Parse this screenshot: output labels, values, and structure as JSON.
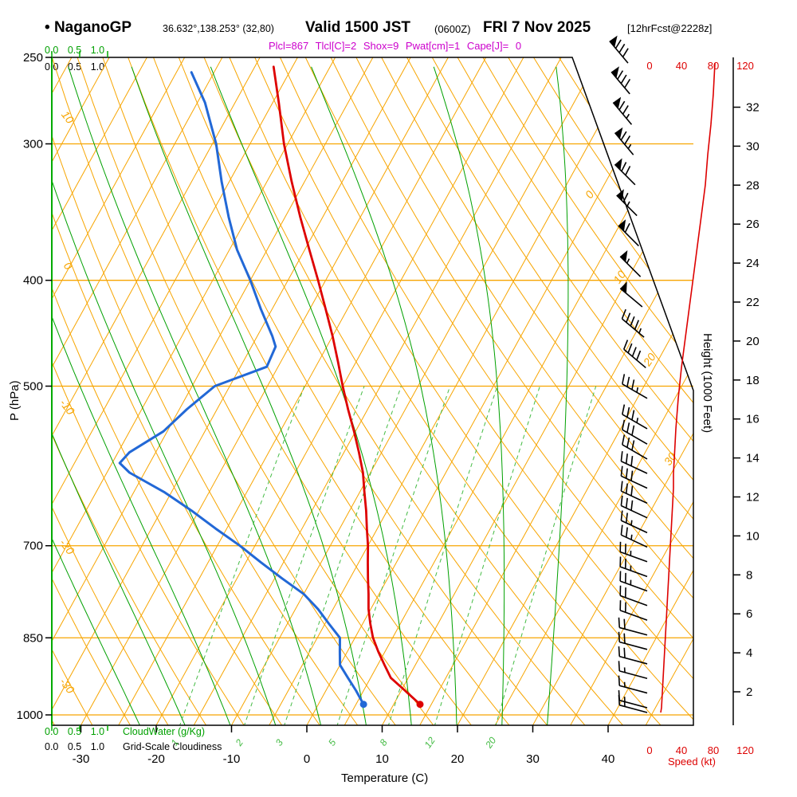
{
  "header": {
    "bullet": "•",
    "station": "NaganoGP",
    "coords": "36.632°,138.253° (32,80)",
    "valid": "Valid 1500 JST",
    "valid_z": "(0600Z)",
    "valid_date": "FRI 7 Nov 2025",
    "fcst_tag": "[12hrFcst@2228z]",
    "params_line": "Plcl=867 Tlcl[C]=2 Shox=9 Pwat[cm]=1 Cape[J]= 0"
  },
  "colors": {
    "grid_orange": "#f7a500",
    "moist_green": "#00a000",
    "mixing_green": "#44bb44",
    "axis_green": "#00aa00",
    "temp_red": "#dd0000",
    "dewpoint_blue": "#2268d6",
    "speed_red": "#dd0000",
    "magenta": "#cc00cc"
  },
  "chart_data": {
    "type": "skewt_logp_sounding",
    "pressure_axis": {
      "label": "P (hPa)",
      "scale": "log",
      "top_hpa": 250,
      "bottom_hpa": 1022,
      "ticks": [
        250,
        300,
        400,
        500,
        700,
        850,
        1000
      ]
    },
    "temperature_axis": {
      "label": "Temperature (C)",
      "ticks": [
        -30,
        -20,
        -10,
        0,
        10,
        20,
        30,
        40
      ]
    },
    "height_axis": {
      "label": "Height (1000 Feet)",
      "ticks": [
        2,
        4,
        6,
        8,
        10,
        12,
        14,
        16,
        18,
        20,
        22,
        24,
        26,
        28,
        30,
        32
      ]
    },
    "speed_axis": {
      "label": "Speed (kt)",
      "ticks": [
        0,
        40,
        80,
        120
      ]
    },
    "cloudwater_axis": {
      "label": "CloudWater (g/Kg)",
      "ticks_text": "0.0 0.5 1.0",
      "ticks": [
        0.0,
        0.5,
        1.0
      ]
    },
    "cloudiness_axis": {
      "label": "Grid-Scale Cloudiness",
      "ticks_text": "0.0 0.5 1.0",
      "ticks": [
        0.0,
        0.5,
        1.0
      ]
    },
    "isotherm_step_c": 5,
    "isotherm_labels": [
      0,
      10,
      20,
      30
    ],
    "dry_adiabat_labels": [
      10,
      0,
      -10,
      -20,
      -30
    ],
    "mixing_ratio_labels": [
      1,
      2,
      3,
      5,
      8,
      12,
      20
    ],
    "moist_adiabat_start_temps_c": [
      -22,
      -16,
      -10,
      -4,
      2,
      8,
      14,
      20,
      26,
      32
    ],
    "surface": {
      "pressure_hpa": 978,
      "temp_c": 13.5,
      "dewpoint_c": 6.0
    },
    "temperature_profile": {
      "pressure_hpa": [
        978,
        950,
        925,
        900,
        875,
        850,
        825,
        800,
        775,
        750,
        725,
        700,
        675,
        650,
        625,
        600,
        575,
        550,
        525,
        500,
        475,
        450,
        425,
        400,
        375,
        350,
        325,
        300,
        275,
        255
      ],
      "temp_c": [
        13.5,
        10.5,
        7.7,
        5.9,
        4.1,
        2.4,
        1.0,
        -0.3,
        -1.4,
        -2.6,
        -3.8,
        -5.0,
        -6.4,
        -7.8,
        -9.4,
        -11.0,
        -13.0,
        -15.2,
        -17.6,
        -20.0,
        -22.4,
        -25.0,
        -27.9,
        -31.0,
        -34.4,
        -38.0,
        -41.7,
        -45.5,
        -49.2,
        -52.5
      ]
    },
    "dewpoint_profile": {
      "pressure_hpa": [
        978,
        950,
        925,
        900,
        875,
        850,
        825,
        800,
        775,
        750,
        725,
        700,
        675,
        650,
        625,
        600,
        588,
        575,
        550,
        525,
        500,
        480,
        460,
        450,
        425,
        400,
        375,
        350,
        325,
        300,
        275,
        258
      ],
      "dewpoint_c": [
        6.0,
        4.0,
        2.0,
        0.0,
        -1.0,
        -2.0,
        -4.5,
        -7.0,
        -10.0,
        -14.0,
        -18.0,
        -22.0,
        -26.5,
        -31.0,
        -36.0,
        -42.0,
        -44.0,
        -43.5,
        -40.5,
        -39.0,
        -37.0,
        -31.5,
        -31.8,
        -33.0,
        -36.5,
        -40.0,
        -44.0,
        -47.5,
        -51.0,
        -54.5,
        -59.0,
        -63.0
      ]
    },
    "wind_profile": {
      "pressure_hpa": [
        995,
        985,
        955,
        926,
        898,
        871,
        845,
        819,
        794,
        770,
        747,
        724,
        702,
        681,
        660,
        640,
        620,
        601,
        583,
        565,
        547,
        513,
        481,
        451,
        423,
        397,
        372,
        349,
        327,
        307,
        288,
        270,
        253
      ],
      "speed_kt": [
        14,
        15,
        16,
        17,
        18,
        19,
        20,
        21,
        22,
        23,
        24,
        25,
        26,
        27,
        28,
        29,
        30,
        30,
        31,
        32,
        33,
        36,
        40,
        45,
        50,
        55,
        60,
        65,
        70,
        73,
        77,
        80,
        82
      ],
      "direction_deg": [
        285,
        285,
        285,
        285,
        285,
        285,
        285,
        290,
        290,
        290,
        290,
        290,
        295,
        295,
        295,
        295,
        295,
        295,
        300,
        300,
        300,
        300,
        310,
        310,
        310,
        315,
        315,
        315,
        315,
        320,
        320,
        320,
        320
      ]
    }
  }
}
